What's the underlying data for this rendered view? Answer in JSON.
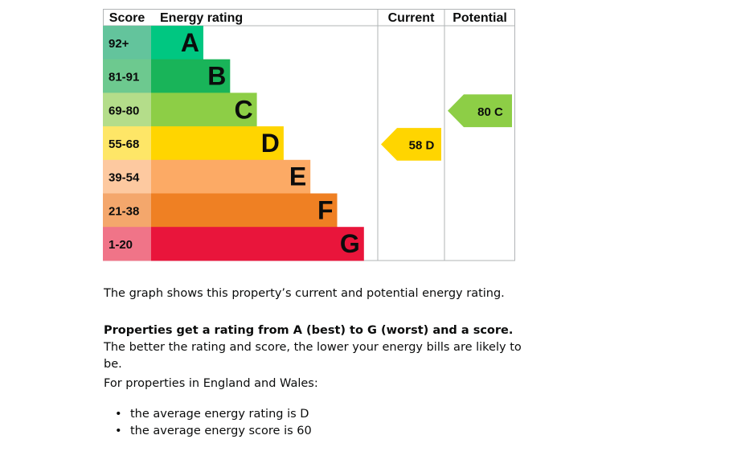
{
  "chart_data": {
    "type": "bar",
    "headers": {
      "score": "Score",
      "rating": "Energy rating",
      "current": "Current",
      "potential": "Potential"
    },
    "bands": [
      {
        "letter": "A",
        "range": "92+",
        "min": 92,
        "max": 100,
        "color": "#008054",
        "score_bg": "#63c49c"
      },
      {
        "letter": "B",
        "range": "81-91",
        "min": 81,
        "max": 91,
        "color": "#19b459",
        "score_bg": "#6dc98f"
      },
      {
        "letter": "C",
        "range": "69-80",
        "min": 69,
        "max": 80,
        "color": "#8dce46",
        "score_bg": "#b4dd8a"
      },
      {
        "letter": "D",
        "range": "55-68",
        "min": 55,
        "max": 68,
        "color": "#ffd500",
        "score_bg": "#fee667"
      },
      {
        "letter": "E",
        "range": "39-54",
        "min": 39,
        "max": 54,
        "color": "#fcaa65",
        "score_bg": "#fdc9a0"
      },
      {
        "letter": "F",
        "range": "21-38",
        "min": 21,
        "max": 38,
        "color": "#ef8023",
        "score_bg": "#f4a76c"
      },
      {
        "letter": "G",
        "range": "1-20",
        "min": 1,
        "max": 20,
        "color": "#e9153b",
        "score_bg": "#f07488"
      }
    ],
    "band_fill_colors": [
      "#00c781",
      "#19b459",
      "#8dce46",
      "#ffd500",
      "#fcaa65",
      "#ef8023",
      "#e9153b"
    ],
    "current": {
      "score": 58,
      "letter": "D",
      "label": "58 D",
      "color": "#ffd500"
    },
    "potential": {
      "score": 80,
      "letter": "C",
      "label": "80 C",
      "color": "#8dce46"
    }
  },
  "text": {
    "p1": "The graph shows this property’s current and potential energy rating.",
    "p2_bold": "Properties get a rating from A (best) to G (worst) and a score.",
    "p2_rest": " The better the rating and score, the lower your energy bills are likely to be.",
    "p3": "For properties in England and Wales:",
    "list": [
      "the average energy rating is D",
      "the average energy score is 60"
    ]
  }
}
